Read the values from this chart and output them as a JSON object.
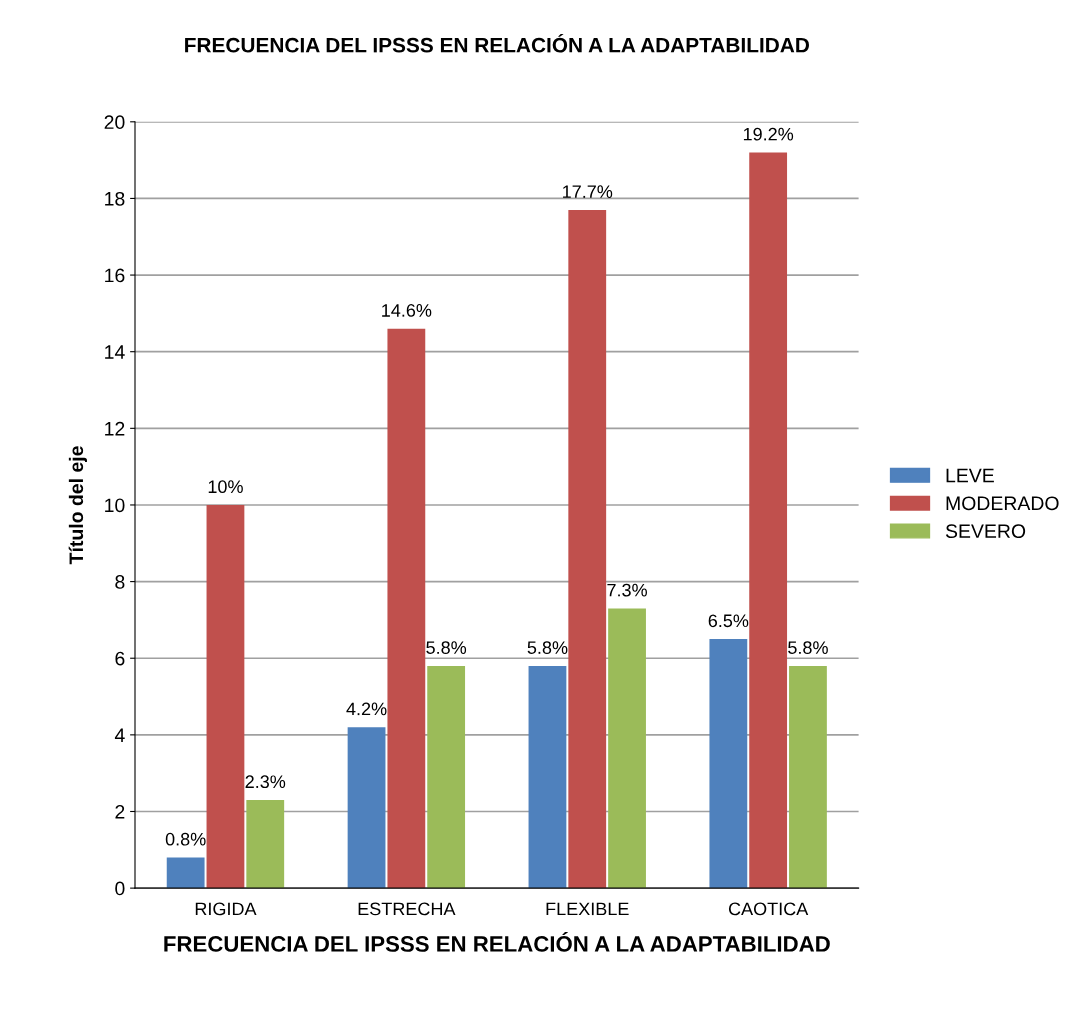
{
  "chart_data": {
    "type": "bar",
    "title": "FRECUENCIA DEL IPSSS EN RELACIÓN A LA ADAPTABILIDAD",
    "xlabel": "FRECUENCIA DEL IPSSS EN RELACIÓN A LA ADAPTABILIDAD",
    "ylabel": "Título del eje",
    "categories": [
      "RIGIDA",
      "ESTRECHA",
      "FLEXIBLE",
      "CAOTICA"
    ],
    "series": [
      {
        "name": "LEVE",
        "color": "#4f81bd",
        "values": [
          0.8,
          4.2,
          5.8,
          6.5
        ],
        "value_labels": [
          "0.8%",
          "4.2%",
          "5.8%",
          "6.5%"
        ]
      },
      {
        "name": "MODERADO",
        "color": "#c0504d",
        "values": [
          10,
          14.6,
          17.7,
          19.2
        ],
        "value_labels": [
          "10%",
          "14.6%",
          "17.7%",
          "19.2%"
        ]
      },
      {
        "name": "SEVERO",
        "color": "#9bbb59",
        "values": [
          2.3,
          5.8,
          7.3,
          5.8
        ],
        "value_labels": [
          "2.3%",
          "5.8%",
          "7.3%",
          "5.8%"
        ]
      }
    ],
    "ylim": [
      0,
      20
    ],
    "yticks": [
      0,
      2,
      4,
      6,
      8,
      10,
      12,
      14,
      16,
      18,
      20
    ],
    "grid": "y",
    "legend": "right"
  }
}
